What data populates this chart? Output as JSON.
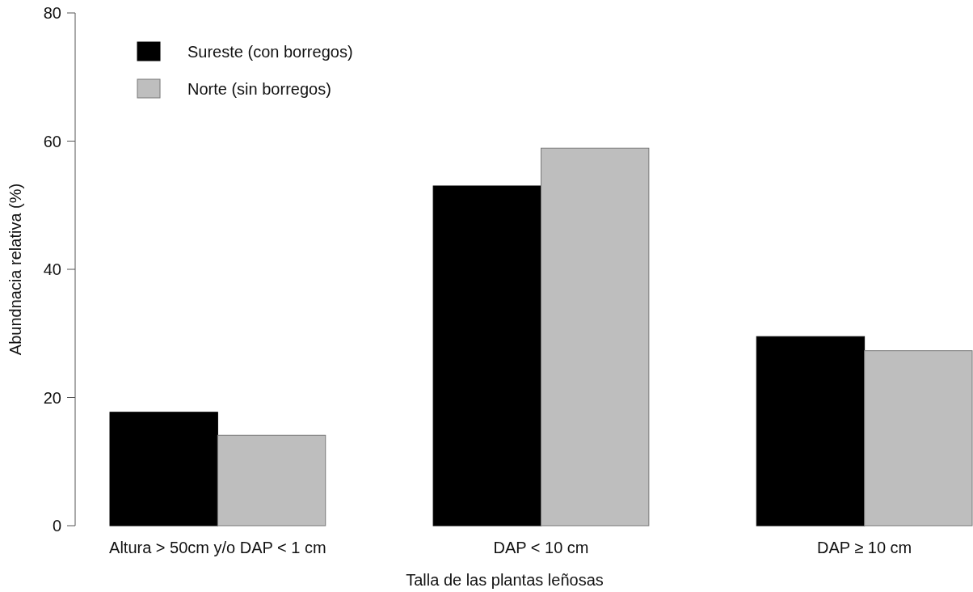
{
  "chart_data": {
    "type": "bar",
    "xlabel": "Talla de las plantas leñosas",
    "ylabel": "Abundnacia relativa (%)",
    "categories": [
      "Altura > 50cm y/o DAP < 1 cm",
      "DAP < 10 cm",
      "DAP ≥ 10 cm"
    ],
    "series": [
      {
        "name": "Sureste (con borregos)",
        "color": "#000000",
        "values": [
          17.7,
          53.0,
          29.5
        ]
      },
      {
        "name": "Norte (sin borregos)",
        "color": "#bebebe",
        "values": [
          14.1,
          58.9,
          27.3
        ]
      }
    ],
    "ylim": [
      0,
      80
    ],
    "yticks": [
      0,
      20,
      40,
      60,
      80
    ],
    "legend": "top left"
  }
}
